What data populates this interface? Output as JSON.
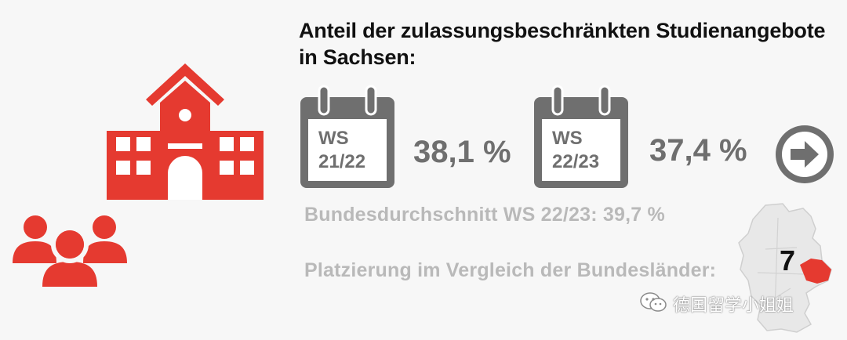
{
  "title": "Anteil der zulassungsbeschränkten Studienangebote in Sachsen:",
  "semesters": [
    {
      "label_line1": "WS",
      "label_line2": "21/22",
      "value": "38,1 %"
    },
    {
      "label_line1": "WS",
      "label_line2": "22/23",
      "value": "37,4 %"
    }
  ],
  "federal_average": "Bundesdurchschnitt WS 22/23: 39,7 %",
  "ranking_label": "Platzierung im Vergleich der Bundesländer:",
  "ranking_value": "7",
  "watermark": "德国留学小姐姐",
  "colors": {
    "accent": "#e53a30",
    "gray": "#6f6f6f",
    "light_gray": "#b9b9b9"
  },
  "icons": [
    "university-building-icon",
    "people-group-icon",
    "calendar-icon",
    "arrow-right-circle-icon",
    "germany-map-icon",
    "wechat-icon"
  ]
}
